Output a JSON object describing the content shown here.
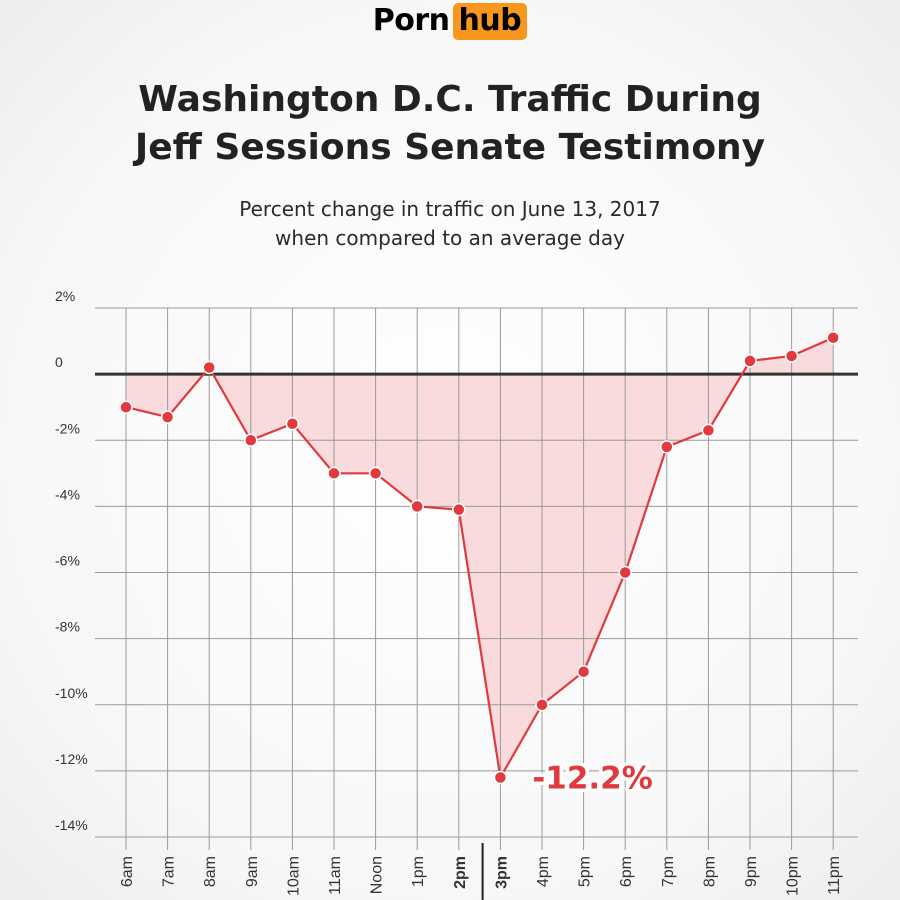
{
  "logo": {
    "part1": "Porn",
    "part2": "hub",
    "accent": "#f7971d"
  },
  "title": {
    "line1": "Washington D.C. Traffic During",
    "line2": "Jeff Sessions Senate Testimony"
  },
  "subtitle": {
    "line1": "Percent change in traffic on June 13, 2017",
    "line2": "when compared to an average day"
  },
  "chart_data": {
    "type": "line",
    "fill": "area-to-zero",
    "categories": [
      "6am",
      "7am",
      "8am",
      "9am",
      "10am",
      "11am",
      "Noon",
      "1pm",
      "2pm",
      "3pm",
      "4pm",
      "5pm",
      "6pm",
      "7pm",
      "8pm",
      "9pm",
      "10pm",
      "11pm"
    ],
    "bold_categories": [
      "2pm",
      "3pm"
    ],
    "divider_between": [
      "2pm",
      "3pm"
    ],
    "values": [
      -1.0,
      -1.3,
      0.2,
      -2.0,
      -1.5,
      -3.0,
      -3.0,
      -4.0,
      -4.1,
      -12.2,
      -10.0,
      -9.0,
      -6.0,
      -2.2,
      -1.7,
      0.4,
      0.55,
      1.1
    ],
    "ylim": [
      -14,
      2
    ],
    "yticks": [
      2,
      0,
      -2,
      -4,
      -6,
      -8,
      -10,
      -12,
      -14
    ],
    "ytick_labels": [
      "2%",
      "0",
      "-2%",
      "-4%",
      "-6%",
      "-8%",
      "-10%",
      "-12%",
      "-14%"
    ],
    "grid": true,
    "annotation": {
      "category": "3pm",
      "text": "-12.2%"
    },
    "colors": {
      "line": "#e0393e",
      "fill": "#f8d7d9",
      "zero_line": "#333333",
      "grid": "#9a9a9a"
    }
  }
}
